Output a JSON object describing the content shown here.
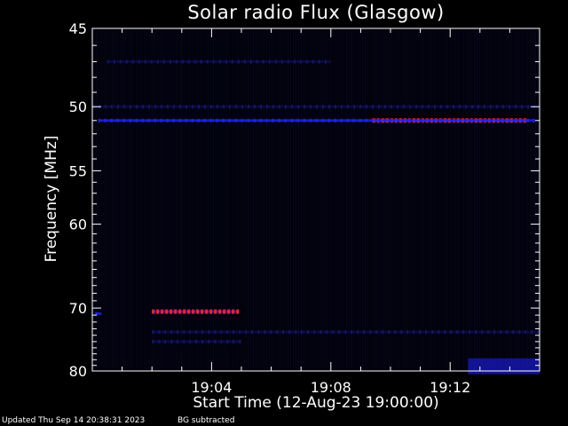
{
  "chart_data": {
    "type": "heatmap",
    "title": "Solar radio Flux (Glasgow)",
    "xlabel": "Start Time (12-Aug-23 19:00:00)",
    "ylabel": "Frequency [MHz]",
    "x_ticks": [
      "19:04",
      "19:08",
      "19:12"
    ],
    "x_tick_minutes": [
      4,
      8,
      12
    ],
    "xlim_minutes": [
      0,
      15
    ],
    "y_ticks": [
      45,
      50,
      55,
      60,
      70,
      80
    ],
    "y_scale": "reciprocal",
    "ylim": [
      45,
      80
    ],
    "colormap": [
      "#000010",
      "#14146e",
      "#2020ff",
      "#ff2020",
      "#ffff00"
    ],
    "features": [
      {
        "freq_mhz": 70.5,
        "t_start_min": 2.0,
        "t_end_min": 4.9,
        "intensity": "high"
      },
      {
        "freq_mhz": 51.0,
        "t_start_min": 9.4,
        "t_end_min": 14.5,
        "intensity": "high"
      },
      {
        "freq_mhz": 51.0,
        "t_start_min": 0.2,
        "t_end_min": 14.8,
        "intensity": "medium"
      },
      {
        "freq_mhz": 50.0,
        "t_start_min": 0.0,
        "t_end_min": 15.0,
        "intensity": "low"
      },
      {
        "freq_mhz": 47.0,
        "t_start_min": 0.5,
        "t_end_min": 8.0,
        "intensity": "low"
      },
      {
        "freq_mhz": 79.0,
        "t_start_min": 12.6,
        "t_end_min": 15.0,
        "intensity": "medium"
      },
      {
        "freq_mhz": 73.5,
        "t_start_min": 2.0,
        "t_end_min": 15.0,
        "intensity": "low"
      },
      {
        "freq_mhz": 75.0,
        "t_start_min": 2.0,
        "t_end_min": 5.0,
        "intensity": "low"
      },
      {
        "freq_mhz": 70.8,
        "t_start_min": 0.1,
        "t_end_min": 0.3,
        "intensity": "medium"
      }
    ]
  },
  "footer": {
    "updated": "Updated Thu Sep 14 20:38:31 2023",
    "note": "BG subtracted"
  }
}
